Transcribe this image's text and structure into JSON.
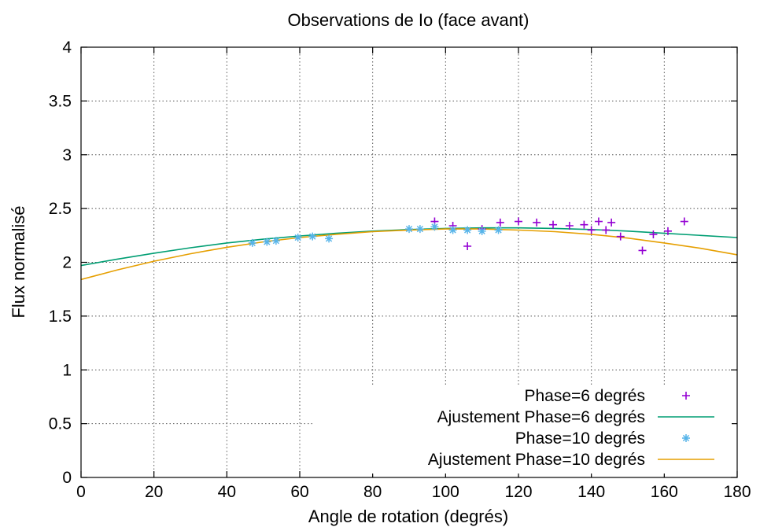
{
  "chart_data": {
    "type": "scatter",
    "title": "Observations de Io (face avant)",
    "xlabel": "Angle de rotation (degrés)",
    "ylabel": "Flux normalisé",
    "xlim": [
      0,
      180
    ],
    "ylim": [
      0,
      4
    ],
    "xticks": [
      0,
      20,
      40,
      60,
      80,
      100,
      120,
      140,
      160,
      180
    ],
    "yticks": [
      0,
      0.5,
      1,
      1.5,
      2,
      2.5,
      3,
      3.5,
      4
    ],
    "xtick_labels": [
      "0",
      "20",
      "40",
      "60",
      "80",
      "100",
      "120",
      "140",
      "160",
      "180"
    ],
    "ytick_labels": [
      "0",
      "0.5",
      "1",
      "1.5",
      "2",
      "2.5",
      "3",
      "3.5",
      "4"
    ],
    "grid": true,
    "legend_position": "bottom-right",
    "series": [
      {
        "name": "Phase=6 degrés",
        "kind": "points",
        "marker": "plus",
        "color": "#9400d3",
        "x": [
          97,
          102,
          106,
          110,
          115,
          120,
          125,
          129.5,
          134,
          138,
          140,
          142,
          144,
          145.5,
          148,
          154,
          157,
          161,
          165.5
        ],
        "y": [
          2.38,
          2.34,
          2.15,
          2.31,
          2.37,
          2.38,
          2.37,
          2.35,
          2.34,
          2.35,
          2.3,
          2.38,
          2.3,
          2.37,
          2.24,
          2.11,
          2.26,
          2.29,
          2.38
        ]
      },
      {
        "name": "Ajustement Phase=6 degrés",
        "kind": "line",
        "color": "#009e73",
        "x": [
          0,
          10,
          20,
          30,
          40,
          50,
          60,
          70,
          80,
          90,
          100,
          110,
          120,
          130,
          140,
          150,
          160,
          170,
          180
        ],
        "y": [
          1.97,
          2.03,
          2.085,
          2.135,
          2.18,
          2.215,
          2.245,
          2.27,
          2.29,
          2.305,
          2.315,
          2.32,
          2.32,
          2.315,
          2.305,
          2.29,
          2.27,
          2.25,
          2.23
        ]
      },
      {
        "name": "Phase=10 degrés",
        "kind": "points",
        "marker": "star",
        "color": "#56b4e9",
        "x": [
          47,
          51,
          53.5,
          59.5,
          63.5,
          68,
          90,
          93,
          97,
          102,
          106,
          110,
          114.5
        ],
        "y": [
          2.18,
          2.19,
          2.2,
          2.23,
          2.24,
          2.22,
          2.31,
          2.31,
          2.33,
          2.3,
          2.3,
          2.29,
          2.3
        ]
      },
      {
        "name": "Ajustement Phase=10 degrés",
        "kind": "line",
        "color": "#e69f00",
        "x": [
          0,
          10,
          20,
          30,
          40,
          50,
          60,
          70,
          80,
          90,
          100,
          110,
          120,
          130,
          140,
          150,
          160,
          170,
          180
        ],
        "y": [
          1.84,
          1.93,
          2.01,
          2.08,
          2.14,
          2.19,
          2.23,
          2.26,
          2.285,
          2.3,
          2.31,
          2.31,
          2.3,
          2.285,
          2.26,
          2.225,
          2.18,
          2.13,
          2.07
        ]
      }
    ]
  }
}
